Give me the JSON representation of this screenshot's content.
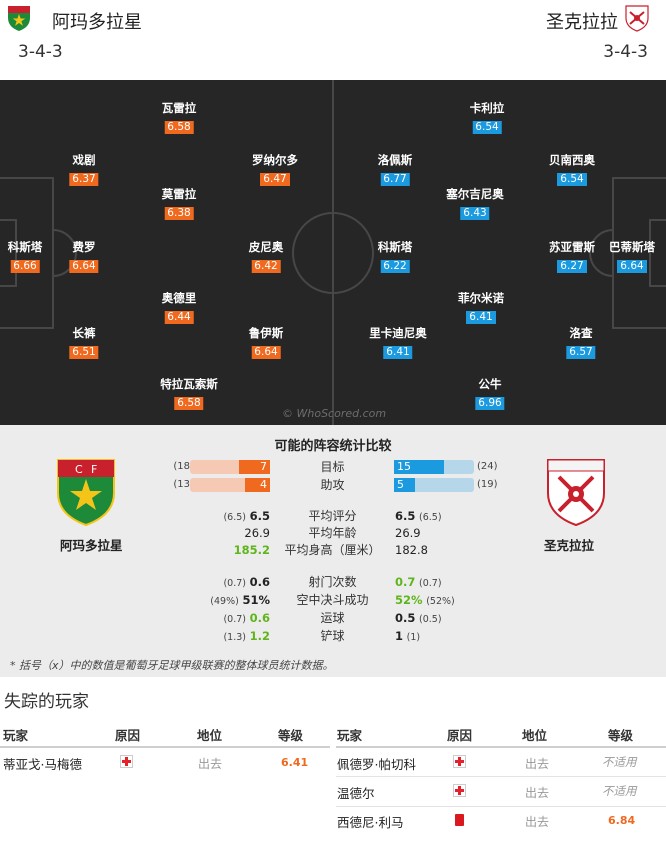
{
  "header": {
    "home_team": "阿玛多拉星",
    "away_team": "圣克拉拉",
    "home_formation": "3-4-3",
    "away_formation": "3-4-3"
  },
  "pitch": {
    "watermark": "© WhoScored.com",
    "home_players": [
      {
        "name": "瓦雷拉",
        "rating": "6.58"
      },
      {
        "name": "戏剧",
        "rating": "6.37"
      },
      {
        "name": "罗纳尔多",
        "rating": "6.47"
      },
      {
        "name": "莫雷拉",
        "rating": "6.38"
      },
      {
        "name": "科斯塔",
        "rating": "6.66"
      },
      {
        "name": "费罗",
        "rating": "6.64"
      },
      {
        "name": "皮尼奥",
        "rating": "6.42"
      },
      {
        "name": "奥德里",
        "rating": "6.44"
      },
      {
        "name": "长裤",
        "rating": "6.51"
      },
      {
        "name": "鲁伊斯",
        "rating": "6.64"
      },
      {
        "name": "特拉瓦索斯",
        "rating": "6.58"
      }
    ],
    "away_players": [
      {
        "name": "卡利拉",
        "rating": "6.54"
      },
      {
        "name": "洛佩斯",
        "rating": "6.77"
      },
      {
        "name": "贝南西奥",
        "rating": "6.54"
      },
      {
        "name": "塞尔吉尼奥",
        "rating": "6.43"
      },
      {
        "name": "科斯塔",
        "rating": "6.22"
      },
      {
        "name": "苏亚雷斯",
        "rating": "6.27"
      },
      {
        "name": "巴蒂斯塔",
        "rating": "6.64"
      },
      {
        "name": "菲尔米诺",
        "rating": "6.41"
      },
      {
        "name": "里卡迪尼奥",
        "rating": "6.41"
      },
      {
        "name": "洛查",
        "rating": "6.57"
      },
      {
        "name": "公牛",
        "rating": "6.96"
      }
    ]
  },
  "comparison": {
    "title": "可能的阵容统计比较",
    "home_team": "阿玛多拉星",
    "away_team": "圣克拉拉",
    "bars": [
      {
        "label": "目标",
        "home": "7",
        "home_season": "(18",
        "home_fraction": 0.39,
        "away": "15",
        "away_season": "(24)",
        "away_fraction": 0.63
      },
      {
        "label": "助攻",
        "home": "4",
        "home_season": "(13",
        "home_fraction": 0.31,
        "away": "5",
        "away_season": "(19)",
        "away_fraction": 0.26
      }
    ],
    "stats_group1": [
      {
        "label": "平均评分",
        "home_paren": "(6.5)",
        "home": "6.5",
        "away": "6.5",
        "away_paren": "(6.5)"
      },
      {
        "label": "平均年龄",
        "home_paren": "",
        "home": "26.9",
        "away": "26.9",
        "away_paren": ""
      },
      {
        "label": "平均身高（厘米）",
        "home_paren": "",
        "home": "185.2",
        "away": "182.8",
        "away_paren": ""
      }
    ],
    "stats_group2": [
      {
        "label": "射门次数",
        "home_paren": "(0.7)",
        "home": "0.6",
        "away": "0.7",
        "away_paren": "(0.7)"
      },
      {
        "label": "空中决斗成功",
        "home_paren": "(49%)",
        "home": "51%",
        "away": "52%",
        "away_paren": "(52%)"
      },
      {
        "label": "运球",
        "home_paren": "(0.7)",
        "home": "0.6",
        "away": "0.5",
        "away_paren": "(0.5)"
      },
      {
        "label": "铲球",
        "home_paren": "(1.3)",
        "home": "1.2",
        "away": "1",
        "away_paren": "(1)"
      }
    ],
    "footnote": "* 括号（x）中的数值是葡萄牙足球甲级联赛的整体球员统计数据。"
  },
  "missing": {
    "title": "失踪的玩家",
    "headers": {
      "player": "玩家",
      "reason": "原因",
      "position": "地位",
      "rating": "等级"
    },
    "home": [
      {
        "player": "蒂亚戈·马梅德",
        "reason": "injury",
        "position": "出去",
        "rating": "6.41"
      }
    ],
    "away": [
      {
        "player": "佩德罗·帕切科",
        "reason": "injury",
        "position": "出去",
        "rating": "不适用"
      },
      {
        "player": "温德尔",
        "reason": "injury",
        "position": "出去",
        "rating": "不适用"
      },
      {
        "player": "西德尼·利马",
        "reason": "red-card",
        "position": "出去",
        "rating": "6.84"
      }
    ]
  },
  "colors": {
    "home_accent": "#ef6a1f",
    "away_accent": "#1b9ae0",
    "pitch": "#262626",
    "better_stat": "#5fb51c"
  }
}
